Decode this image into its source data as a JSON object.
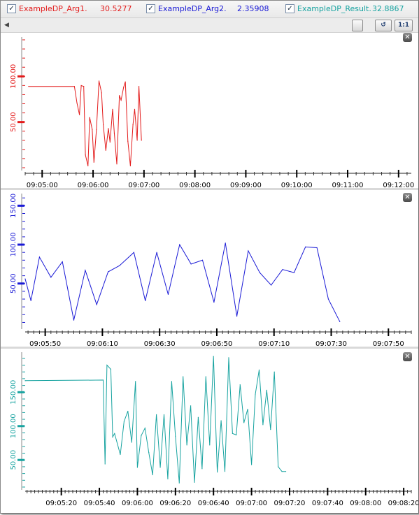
{
  "legend": [
    {
      "name": "ExampleDP_Arg1.",
      "value": "30.5277",
      "color": "#e31b1b",
      "checked": true
    },
    {
      "name": "ExampleDP_Arg2.",
      "value": "2.35908",
      "color": "#1a1ad6",
      "checked": true
    },
    {
      "name": "ExampleDP_Result.",
      "value": "32.8867",
      "color": "#17a3a0",
      "checked": true
    }
  ],
  "toolbar": {
    "scroll_left_icon": "arrow-left-icon",
    "blank_button_icon": "blank-icon",
    "refresh_button_icon": "refresh-icon",
    "zoom_button_label": "1:1"
  },
  "chart_data": [
    {
      "type": "line",
      "series": [
        {
          "name": "ExampleDP_Arg1.",
          "color": "#e31b1b",
          "points": [
            [
              "09:04:44",
              89
            ],
            [
              "09:05:38",
              89
            ],
            [
              "09:05:41",
              71
            ],
            [
              "09:05:44",
              58
            ],
            [
              "09:05:46",
              90
            ],
            [
              "09:05:49",
              89
            ],
            [
              "09:05:51",
              14
            ],
            [
              "09:05:54",
              2
            ],
            [
              "09:05:56",
              55
            ],
            [
              "09:05:59",
              42
            ],
            [
              "09:06:01",
              6
            ],
            [
              "09:06:04",
              42
            ],
            [
              "09:06:07",
              95
            ],
            [
              "09:06:10",
              82
            ],
            [
              "09:06:12",
              47
            ],
            [
              "09:06:15",
              19
            ],
            [
              "09:06:18",
              43
            ],
            [
              "09:06:20",
              28
            ],
            [
              "09:06:23",
              64
            ],
            [
              "09:06:25",
              38
            ],
            [
              "09:06:28",
              4
            ],
            [
              "09:06:31",
              79
            ],
            [
              "09:06:33",
              74
            ],
            [
              "09:06:36",
              88
            ],
            [
              "09:06:38",
              94
            ],
            [
              "09:06:41",
              29
            ],
            [
              "09:06:44",
              2
            ],
            [
              "09:06:47",
              47
            ],
            [
              "09:06:49",
              64
            ],
            [
              "09:06:52",
              30
            ],
            [
              "09:06:54",
              89
            ],
            [
              "09:06:57",
              30
            ]
          ]
        }
      ],
      "yticks": [
        "50.00",
        "100.00"
      ],
      "ylim": [
        0,
        140
      ],
      "xlim": [
        "09:04:40",
        "09:12:15"
      ],
      "xticks": [
        "09:05:00",
        "09:06:00",
        "09:07:00",
        "09:08:00",
        "09:09:00",
        "09:10:00",
        "09:11:00",
        "09:12:00"
      ],
      "color": "#e31b1b"
    },
    {
      "type": "line",
      "series": [
        {
          "name": "ExampleDP_Arg2.",
          "color": "#1a1ad6",
          "points": [
            [
              "09:05:43",
              56
            ],
            [
              "09:05:45",
              28
            ],
            [
              "09:05:48",
              84
            ],
            [
              "09:05:52",
              58
            ],
            [
              "09:05:56",
              78
            ],
            [
              "09:06:00",
              3
            ],
            [
              "09:06:04",
              67
            ],
            [
              "09:06:08",
              23
            ],
            [
              "09:06:12",
              65
            ],
            [
              "09:06:16",
              73
            ],
            [
              "09:06:21",
              90
            ],
            [
              "09:06:25",
              28
            ],
            [
              "09:06:29",
              90
            ],
            [
              "09:06:33",
              36
            ],
            [
              "09:06:37",
              100
            ],
            [
              "09:06:41",
              75
            ],
            [
              "09:06:45",
              80
            ],
            [
              "09:06:49",
              26
            ],
            [
              "09:06:53",
              102
            ],
            [
              "09:06:57",
              8
            ],
            [
              "09:07:01",
              92
            ],
            [
              "09:07:05",
              64
            ],
            [
              "09:07:09",
              48
            ],
            [
              "09:07:13",
              68
            ],
            [
              "09:07:17",
              64
            ],
            [
              "09:07:21",
              97
            ],
            [
              "09:07:25",
              96
            ],
            [
              "09:07:29",
              30
            ],
            [
              "09:07:33",
              1
            ]
          ]
        }
      ],
      "yticks": [
        "50.00",
        "100.00",
        "150.00"
      ],
      "ylim": [
        -5,
        162
      ],
      "xlim": [
        "09:05:43",
        "09:07:58"
      ],
      "xticks": [
        "09:05:50",
        "09:06:10",
        "09:06:30",
        "09:06:50",
        "09:07:10",
        "09:07:30",
        "09:07:50"
      ],
      "color": "#1a1ad6"
    },
    {
      "type": "line",
      "series": [
        {
          "name": "ExampleDP_Result.",
          "color": "#17a3a0",
          "points": [
            [
              "09:05:01",
              167
            ],
            [
              "09:05:42",
              168
            ],
            [
              "09:05:43",
              44
            ],
            [
              "09:05:44",
              190
            ],
            [
              "09:05:46",
              184
            ],
            [
              "09:05:47",
              84
            ],
            [
              "09:05:48",
              89
            ],
            [
              "09:05:51",
              58
            ],
            [
              "09:05:53",
              107
            ],
            [
              "09:05:55",
              122
            ],
            [
              "09:05:57",
              76
            ],
            [
              "09:05:59",
              166
            ],
            [
              "09:06:00",
              39
            ],
            [
              "09:06:02",
              86
            ],
            [
              "09:06:04",
              97
            ],
            [
              "09:06:06",
              61
            ],
            [
              "09:06:08",
              28
            ],
            [
              "09:06:10",
              117
            ],
            [
              "09:06:12",
              39
            ],
            [
              "09:06:14",
              117
            ],
            [
              "09:06:16",
              22
            ],
            [
              "09:06:18",
              166
            ],
            [
              "09:06:20",
              85
            ],
            [
              "09:06:22",
              16
            ],
            [
              "09:06:24",
              173
            ],
            [
              "09:06:26",
              72
            ],
            [
              "09:06:28",
              130
            ],
            [
              "09:06:30",
              17
            ],
            [
              "09:06:32",
              113
            ],
            [
              "09:06:34",
              37
            ],
            [
              "09:06:36",
              173
            ],
            [
              "09:06:38",
              72
            ],
            [
              "09:06:40",
              203
            ],
            [
              "09:06:42",
              32
            ],
            [
              "09:06:44",
              108
            ],
            [
              "09:06:46",
              33
            ],
            [
              "09:06:48",
              201
            ],
            [
              "09:06:50",
              89
            ],
            [
              "09:06:52",
              87
            ],
            [
              "09:06:54",
              161
            ],
            [
              "09:06:56",
              105
            ],
            [
              "09:06:58",
              125
            ],
            [
              "09:07:00",
              43
            ],
            [
              "09:07:02",
              147
            ],
            [
              "09:07:04",
              183
            ],
            [
              "09:07:06",
              102
            ],
            [
              "09:07:08",
              153
            ],
            [
              "09:07:10",
              95
            ],
            [
              "09:07:12",
              180
            ],
            [
              "09:07:14",
              40
            ],
            [
              "09:07:16",
              33
            ],
            [
              "09:07:18",
              33
            ]
          ]
        }
      ],
      "yticks": [
        "50.00",
        "100.00",
        "150.00"
      ],
      "ylim": [
        10,
        205
      ],
      "xlim": [
        "09:05:01",
        "09:08:24"
      ],
      "xticks": [
        "09:05:20",
        "09:05:40",
        "09:06:00",
        "09:06:20",
        "09:06:40",
        "09:07:00",
        "09:07:20",
        "09:07:40",
        "09:08:00",
        "09:08:20"
      ],
      "color": "#17a3a0"
    }
  ]
}
